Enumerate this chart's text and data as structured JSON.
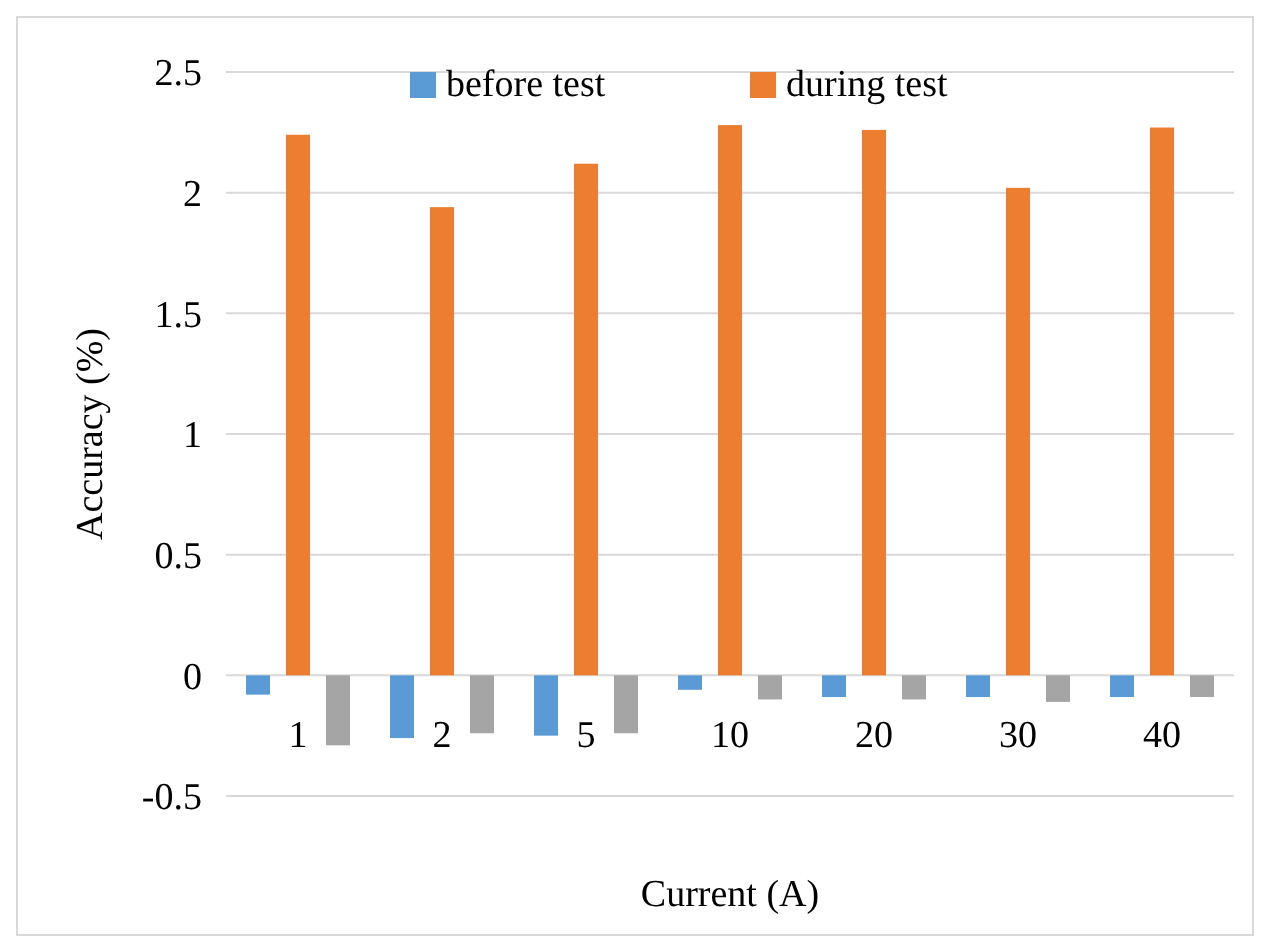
{
  "chart_data": {
    "type": "bar",
    "xlabel": "Current (A)",
    "ylabel": "Accuracy (%)",
    "categories": [
      "1",
      "2",
      "5",
      "10",
      "20",
      "30",
      "40"
    ],
    "series": [
      {
        "name": "before test",
        "color": "#5b9bd5",
        "values": [
          -0.08,
          -0.26,
          -0.25,
          -0.06,
          -0.09,
          -0.09,
          -0.09
        ]
      },
      {
        "name": "during test",
        "color": "#ed7d31",
        "values": [
          2.24,
          1.94,
          2.12,
          2.28,
          2.26,
          2.02,
          2.27
        ]
      },
      {
        "color": "#a5a5a5",
        "values": [
          -0.29,
          -0.24,
          -0.24,
          -0.1,
          -0.1,
          -0.11,
          -0.09
        ]
      }
    ],
    "ylim": [
      -0.5,
      2.5
    ],
    "yticks": [
      -0.5,
      0,
      0.5,
      1,
      1.5,
      2,
      2.5
    ],
    "grid": "y",
    "legend": "top"
  }
}
